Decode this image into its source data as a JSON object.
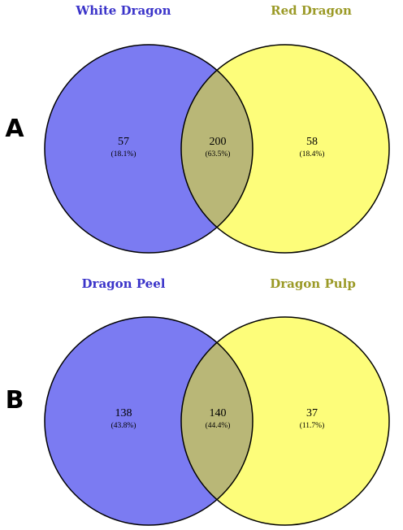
{
  "colors": {
    "left_fill": "#7b7bf2",
    "right_fill": "#fdfd7a",
    "overlap_fill": "#b9b777",
    "left_title_color": "#3a33c9",
    "right_title_color": "#9b9a27",
    "stroke": "#000000"
  },
  "panels": [
    {
      "label": "A",
      "left_title": "White Dragon",
      "right_title": "Red Dragon",
      "left_only": {
        "count": "57",
        "percent": "(18.1%)"
      },
      "overlap": {
        "count": "200",
        "percent": "(63.5%)"
      },
      "right_only": {
        "count": "58",
        "percent": "(18.4%)"
      }
    },
    {
      "label": "B",
      "left_title": "Dragon Peel",
      "right_title": "Dragon Pulp",
      "left_only": {
        "count": "138",
        "percent": "(43.8%)"
      },
      "overlap": {
        "count": "140",
        "percent": "(44.4%)"
      },
      "right_only": {
        "count": "37",
        "percent": "(11.7%)"
      }
    }
  ]
}
